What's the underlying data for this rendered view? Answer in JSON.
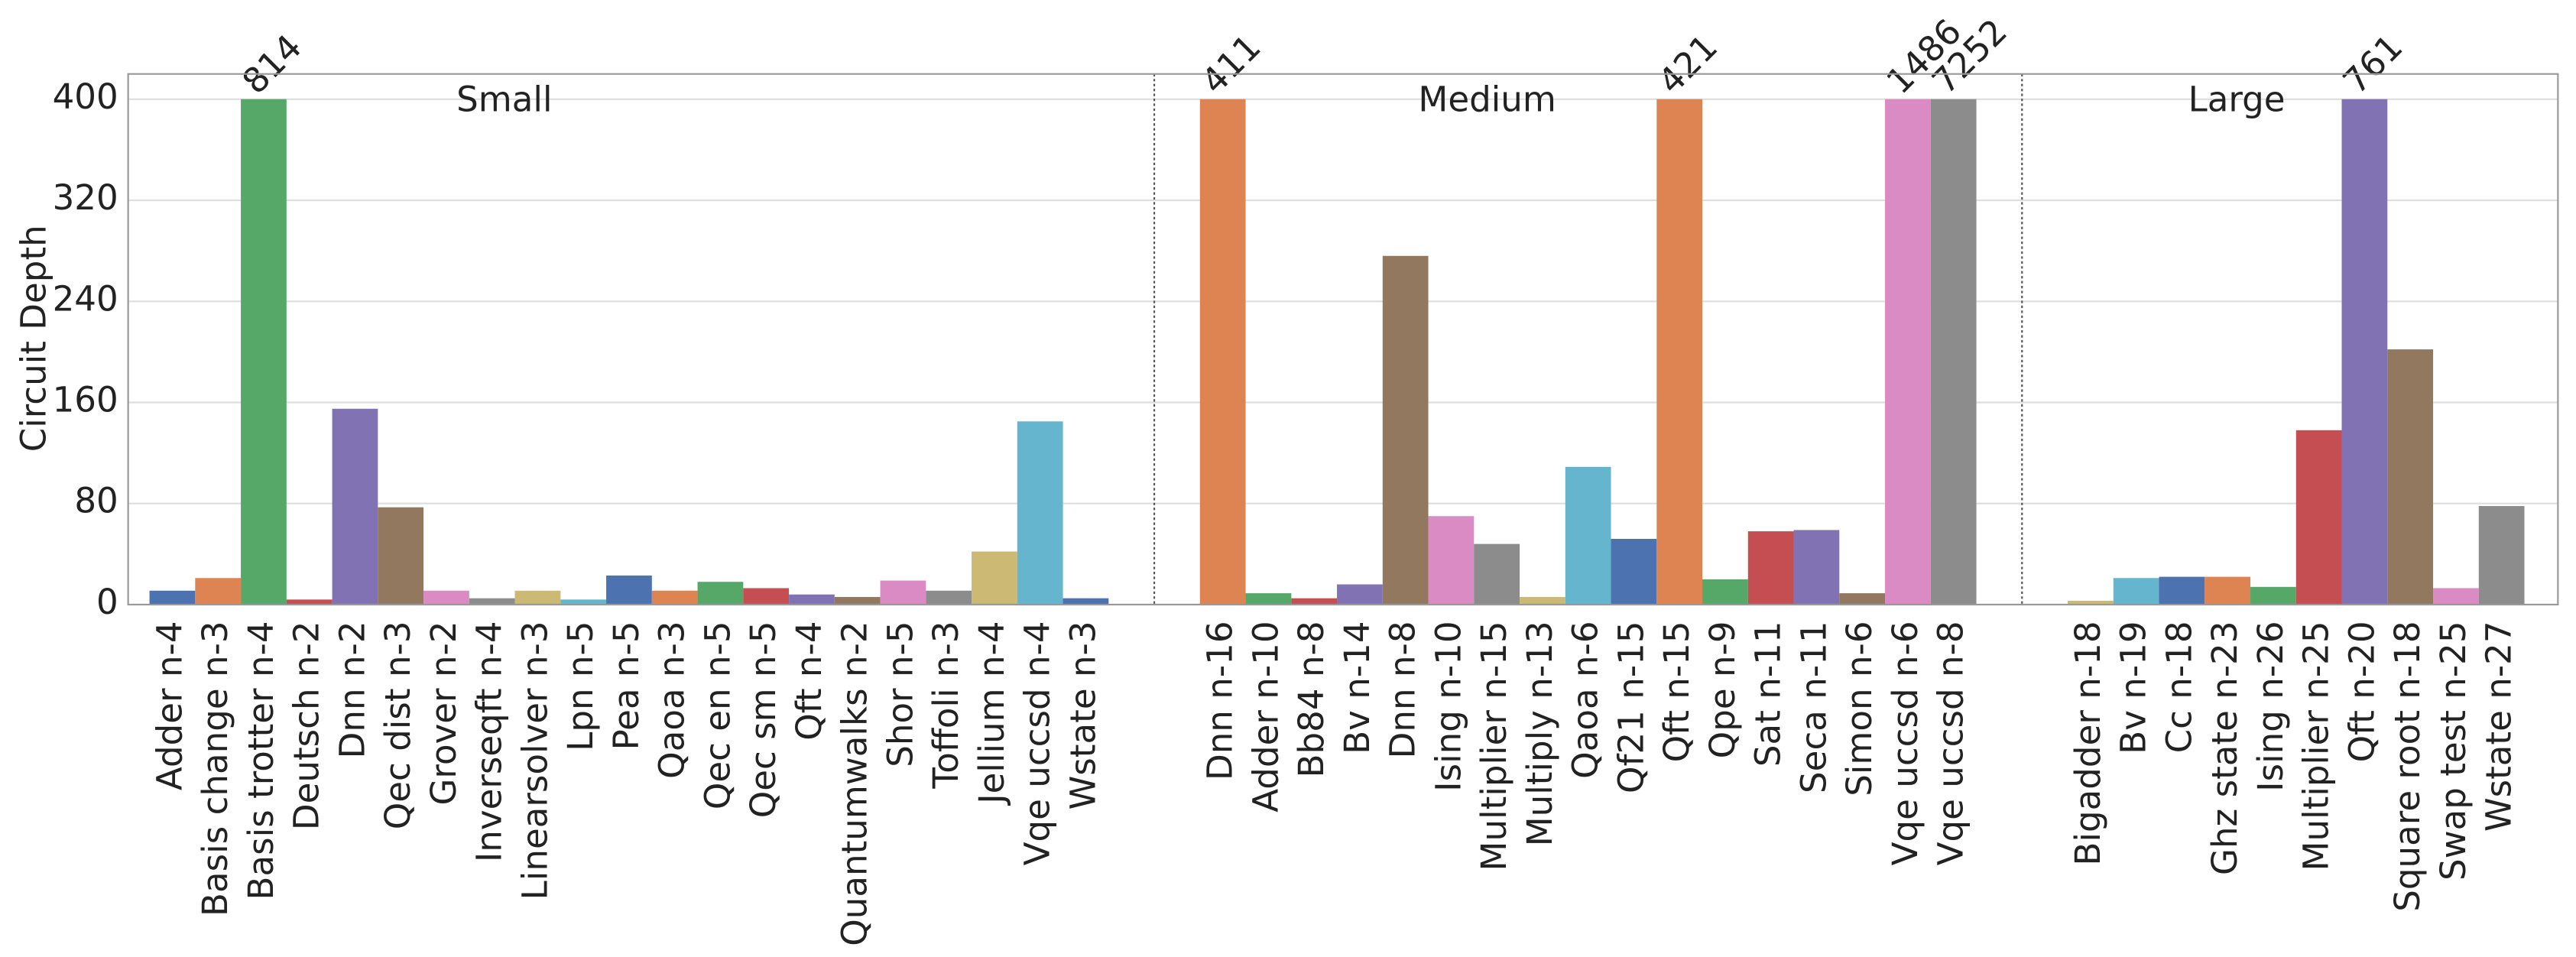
{
  "chart_data": {
    "type": "bar",
    "ylabel": "Circuit Depth",
    "ylim": [
      0,
      420
    ],
    "yticks": [
      0,
      80,
      160,
      240,
      320,
      400
    ],
    "grid": true,
    "groups": [
      {
        "name": "Small",
        "categories": [
          "Adder n-4",
          "Basis change n-3",
          "Basis trotter n-4",
          "Deutsch n-2",
          "Dnn n-2",
          "Qec dist n-3",
          "Grover n-2",
          "Inverseqft n-4",
          "Linearsolver n-3",
          "Lpn n-5",
          "Pea n-5",
          "Qaoa n-3",
          "Qec en n-5",
          "Qec sm n-5",
          "Qft n-4",
          "Quantumwalks n-2",
          "Shor n-5",
          "Toffoli n-3",
          "Jellium n-4",
          "Vqe uccsd n-4",
          "Wstate n-3"
        ],
        "values": [
          11,
          21,
          814,
          4,
          155,
          77,
          11,
          5,
          11,
          4,
          23,
          11,
          18,
          13,
          8,
          6,
          19,
          11,
          42,
          145,
          5
        ],
        "value_labels": [
          null,
          null,
          "814",
          null,
          null,
          null,
          null,
          null,
          null,
          null,
          null,
          null,
          null,
          null,
          null,
          null,
          null,
          null,
          null,
          null,
          null
        ],
        "colors": [
          "#4c72b0",
          "#dd8452",
          "#55a868",
          "#c44e52",
          "#8172b3",
          "#937860",
          "#da8bc3",
          "#8c8c8c",
          "#ccb974",
          "#64b5cd",
          "#4c72b0",
          "#dd8452",
          "#55a868",
          "#c44e52",
          "#8172b3",
          "#937860",
          "#da8bc3",
          "#8c8c8c",
          "#ccb974",
          "#64b5cd",
          "#4c72b0"
        ]
      },
      {
        "name": "Medium",
        "categories": [
          "Dnn n-16",
          "Adder n-10",
          "Bb84 n-8",
          "Bv n-14",
          "Dnn n-8",
          "Ising n-10",
          "Multiplier n-15",
          "Multiply n-13",
          "Qaoa n-6",
          "Qf21 n-15",
          "Qft n-15",
          "Qpe n-9",
          "Sat n-11",
          "Seca n-11",
          "Simon n-6",
          "Vqe uccsd n-6",
          "Vqe uccsd n-8"
        ],
        "values": [
          411,
          9,
          5,
          16,
          276,
          70,
          48,
          6,
          109,
          52,
          421,
          20,
          58,
          59,
          9,
          1486,
          7252
        ],
        "value_labels": [
          "411",
          null,
          null,
          null,
          null,
          null,
          null,
          null,
          null,
          null,
          "421",
          null,
          null,
          null,
          null,
          "1486",
          "7252"
        ],
        "colors": [
          "#dd8452",
          "#55a868",
          "#c44e52",
          "#8172b3",
          "#937860",
          "#da8bc3",
          "#8c8c8c",
          "#ccb974",
          "#64b5cd",
          "#4c72b0",
          "#dd8452",
          "#55a868",
          "#c44e52",
          "#8172b3",
          "#937860",
          "#da8bc3",
          "#8c8c8c"
        ]
      },
      {
        "name": "Large",
        "categories": [
          "Bigadder n-18",
          "Bv n-19",
          "Cc n-18",
          "Ghz state n-23",
          "Ising n-26",
          "Multiplier n-25",
          "Qft n-20",
          "Square root n-18",
          "Swap test n-25",
          "Wstate n-27"
        ],
        "values": [
          3,
          21,
          22,
          22,
          14,
          138,
          761,
          202,
          13,
          78
        ],
        "value_labels": [
          null,
          null,
          null,
          null,
          null,
          null,
          "761",
          null,
          null,
          null
        ],
        "colors": [
          "#ccb974",
          "#64b5cd",
          "#4c72b0",
          "#dd8452",
          "#55a868",
          "#c44e52",
          "#8172b3",
          "#937860",
          "#da8bc3",
          "#8c8c8c"
        ]
      }
    ]
  }
}
